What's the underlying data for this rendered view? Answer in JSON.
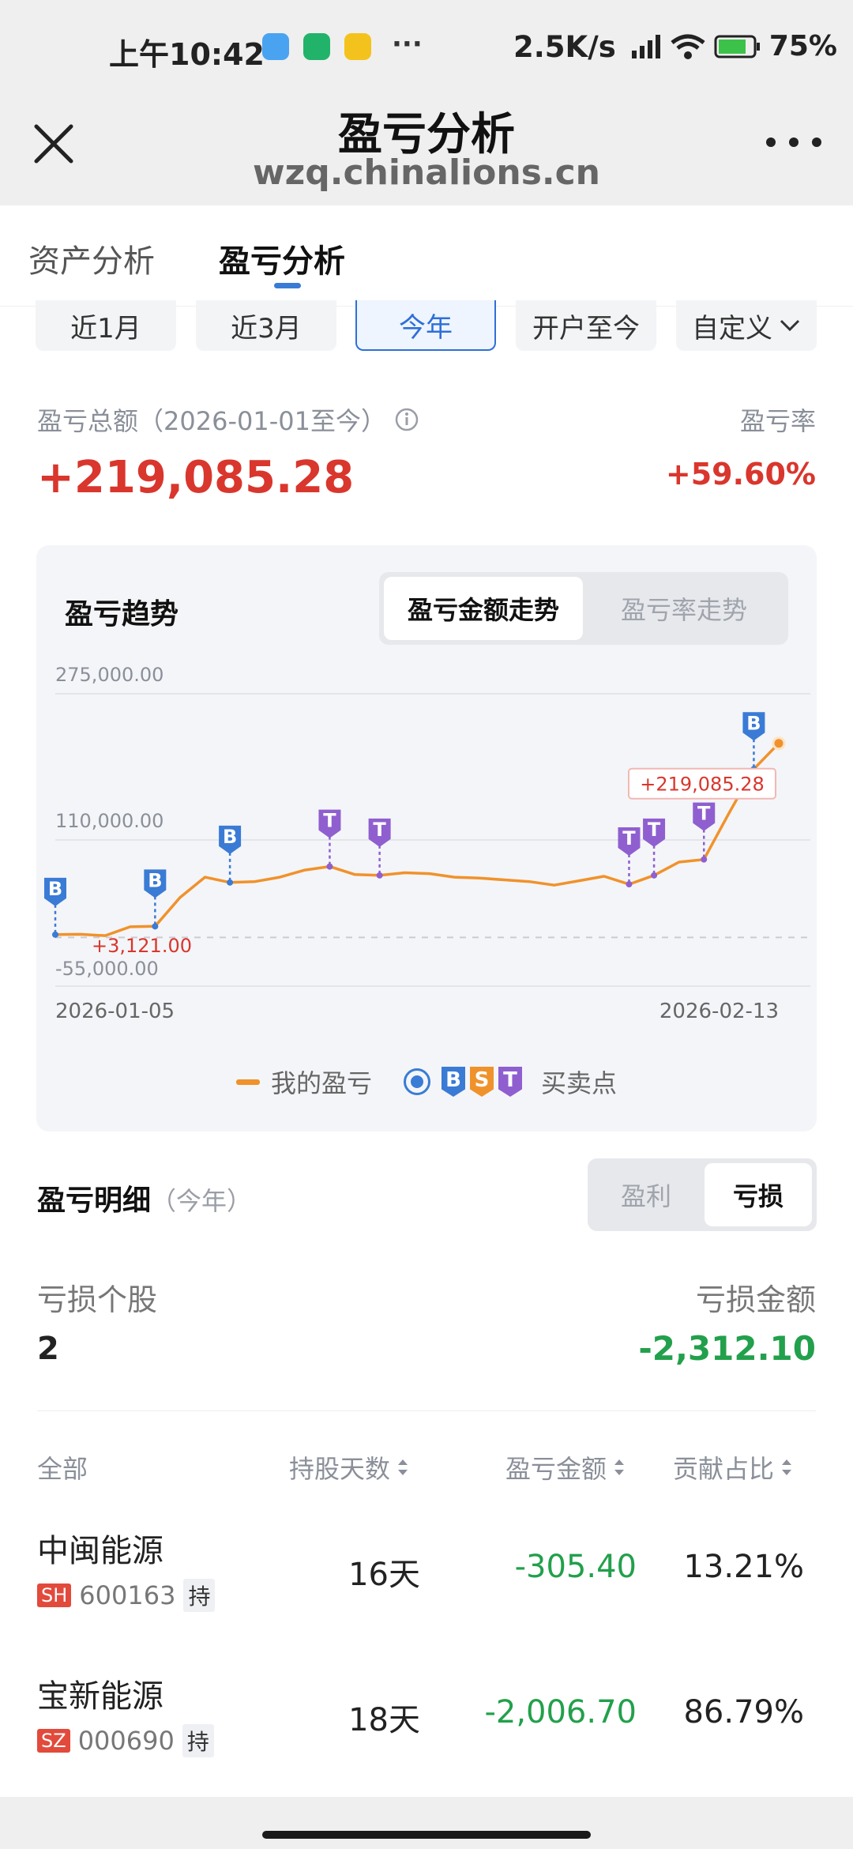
{
  "status_bar": {
    "time": "上午10:42",
    "dots": "···",
    "speed": "2.5K/s",
    "battery": "75%"
  },
  "header": {
    "title": "盈亏分析",
    "subtitle": "wzq.chinalions.cn"
  },
  "tabs": [
    {
      "label": "资产分析"
    },
    {
      "label": "盈亏分析"
    }
  ],
  "periods": [
    {
      "label": "近1月"
    },
    {
      "label": "近3月"
    },
    {
      "label": "今年"
    },
    {
      "label": "开户至今"
    },
    {
      "label": "自定义"
    }
  ],
  "summary": {
    "total_label": "盈亏总额（2026-01-01至今）",
    "total_value": "+219,085.28",
    "rate_label": "盈亏率",
    "rate_value": "+59.60%"
  },
  "chart": {
    "title": "盈亏趋势",
    "toggle": [
      {
        "label": "盈亏金额走势"
      },
      {
        "label": "盈亏率走势"
      }
    ],
    "legend_series": "我的盈亏",
    "legend_points": "买卖点",
    "marker_letters": [
      "B",
      "S",
      "T"
    ],
    "colors": {
      "line": "#f0922b",
      "buy": "#3a7bd5",
      "sell": "#f0922b",
      "t": "#8f5fd0"
    }
  },
  "chart_data": {
    "type": "line",
    "y_ticks": [
      "275,000.00",
      "110,000.00",
      "-55,000.00"
    ],
    "x_labels": [
      "2026-01-05",
      "2026-02-13"
    ],
    "ylim": [
      -55000,
      275000
    ],
    "series": [
      {
        "name": "我的盈亏",
        "values": [
          3121,
          3500,
          2000,
          12000,
          12500,
          45000,
          68000,
          62000,
          63000,
          68000,
          76000,
          80000,
          71000,
          70000,
          73000,
          72000,
          68000,
          67000,
          65000,
          63000,
          59000,
          64000,
          69000,
          60000,
          70000,
          85000,
          88000,
          140000,
          190000,
          219085.28
        ]
      }
    ],
    "trade_markers": [
      {
        "index": 0,
        "type": "B"
      },
      {
        "index": 4,
        "type": "B"
      },
      {
        "index": 7,
        "type": "B"
      },
      {
        "index": 11,
        "type": "T"
      },
      {
        "index": 13,
        "type": "T"
      },
      {
        "index": 23,
        "type": "T"
      },
      {
        "index": 24,
        "type": "T"
      },
      {
        "index": 26,
        "type": "T"
      },
      {
        "index": 28,
        "type": "B"
      }
    ],
    "annotations": [
      "+3,121.00",
      "+219,085.28"
    ],
    "baseline": 0
  },
  "detail": {
    "title": "盈亏明细",
    "period": "（今年）",
    "toggle": [
      {
        "label": "盈利"
      },
      {
        "label": "亏损"
      }
    ],
    "count_label": "亏损个股",
    "count_value": "2",
    "amount_label": "亏损金额",
    "amount_value": "-2,312.10",
    "columns": [
      "全部",
      "持股天数",
      "盈亏金额",
      "贡献占比"
    ],
    "rows": [
      {
        "name": "中闽能源",
        "market": "SH",
        "code": "600163",
        "hold": "持",
        "days": "16天",
        "pnl": "-305.40",
        "share": "13.21%"
      },
      {
        "name": "宝新能源",
        "market": "SZ",
        "code": "000690",
        "hold": "持",
        "days": "18天",
        "pnl": "-2,006.70",
        "share": "86.79%"
      }
    ]
  }
}
